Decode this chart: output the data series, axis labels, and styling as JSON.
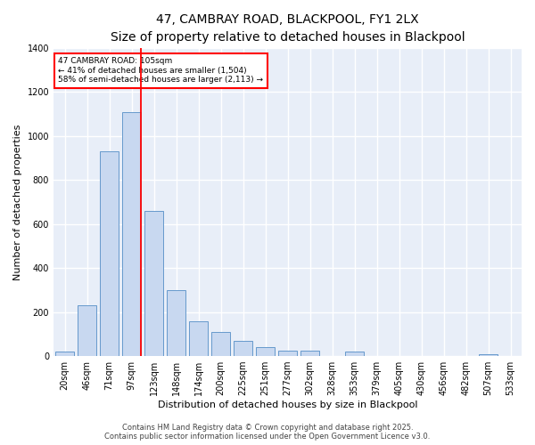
{
  "title_line1": "47, CAMBRAY ROAD, BLACKPOOL, FY1 2LX",
  "title_line2": "Size of property relative to detached houses in Blackpool",
  "xlabel": "Distribution of detached houses by size in Blackpool",
  "ylabel": "Number of detached properties",
  "bar_color": "#c8d8f0",
  "bar_edge_color": "#6699cc",
  "bar_edge_width": 0.7,
  "vline_x_idx": 3,
  "vline_color": "red",
  "annotation_text": "47 CAMBRAY ROAD: 105sqm\n← 41% of detached houses are smaller (1,504)\n58% of semi-detached houses are larger (2,113) →",
  "annotation_box_color": "red",
  "annotation_bg": "white",
  "categories": [
    "20sqm",
    "46sqm",
    "71sqm",
    "97sqm",
    "123sqm",
    "148sqm",
    "174sqm",
    "200sqm",
    "225sqm",
    "251sqm",
    "277sqm",
    "302sqm",
    "328sqm",
    "353sqm",
    "379sqm",
    "405sqm",
    "430sqm",
    "456sqm",
    "482sqm",
    "507sqm",
    "533sqm"
  ],
  "values": [
    20,
    230,
    930,
    1110,
    660,
    300,
    160,
    110,
    70,
    40,
    25,
    25,
    0,
    20,
    0,
    0,
    0,
    0,
    0,
    10,
    0
  ],
  "ylim": [
    0,
    1400
  ],
  "yticks": [
    0,
    200,
    400,
    600,
    800,
    1000,
    1200,
    1400
  ],
  "background_color": "#e8eef8",
  "grid_color": "white",
  "footer": "Contains HM Land Registry data © Crown copyright and database right 2025.\nContains public sector information licensed under the Open Government Licence v3.0.",
  "title_fontsize": 10,
  "subtitle_fontsize": 9,
  "axis_label_fontsize": 8,
  "tick_fontsize": 7,
  "annotation_fontsize": 6.5,
  "footer_fontsize": 6
}
